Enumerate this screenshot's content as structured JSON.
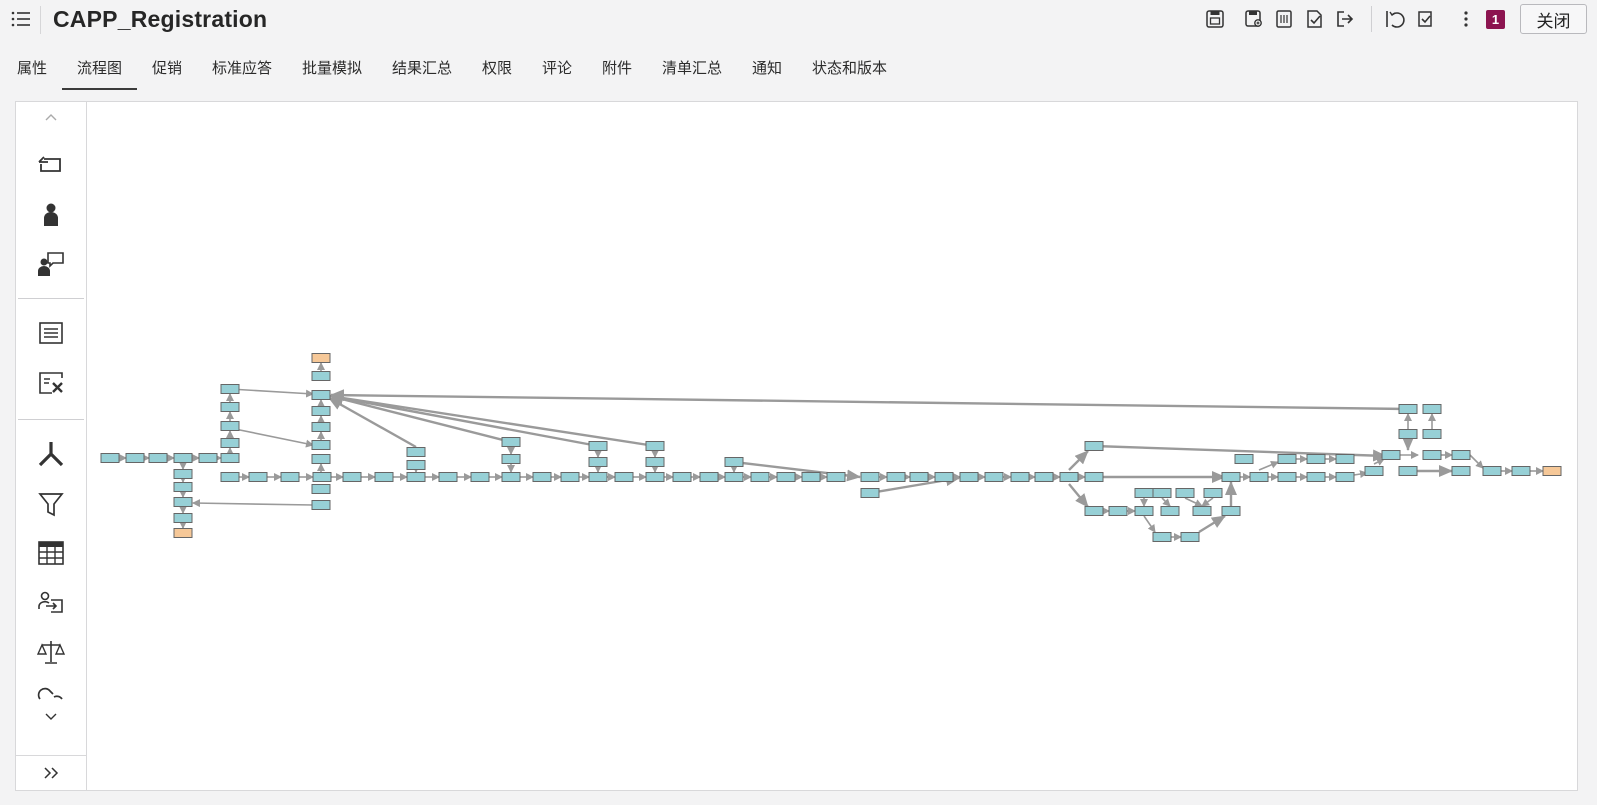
{
  "header": {
    "title": "CAPP_Registration",
    "notification_count": "1",
    "close_label": "关闭"
  },
  "tabs": [
    {
      "label": "属性",
      "active": false
    },
    {
      "label": "流程图",
      "active": true
    },
    {
      "label": "促销",
      "active": false
    },
    {
      "label": "标准应答",
      "active": false
    },
    {
      "label": "批量模拟",
      "active": false
    },
    {
      "label": "结果汇总",
      "active": false
    },
    {
      "label": "权限",
      "active": false
    },
    {
      "label": "评论",
      "active": false
    },
    {
      "label": "附件",
      "active": false
    },
    {
      "label": "清单汇总",
      "active": false
    },
    {
      "label": "通知",
      "active": false
    },
    {
      "label": "状态和版本",
      "active": false
    }
  ],
  "toolbar_icons": [
    "save-icon",
    "save-as-icon",
    "list-view-icon",
    "check-doc-icon",
    "export-icon",
    "undo-icon",
    "validate-icon",
    "more-vert-icon"
  ],
  "sidebar_icons": [
    "start-node-icon",
    "person-node-icon",
    "user-message-icon",
    "list-node-icon",
    "remove-card-icon",
    "split-icon",
    "filter-icon",
    "table-icon",
    "assign-icon",
    "balance-icon",
    "link-icon"
  ],
  "colors": {
    "node_fill": "#97d0d6",
    "node_stroke": "#666666",
    "terminal_fill": "#f6c898",
    "edge": "#9a9a9a",
    "badge": "#8c1450"
  }
}
